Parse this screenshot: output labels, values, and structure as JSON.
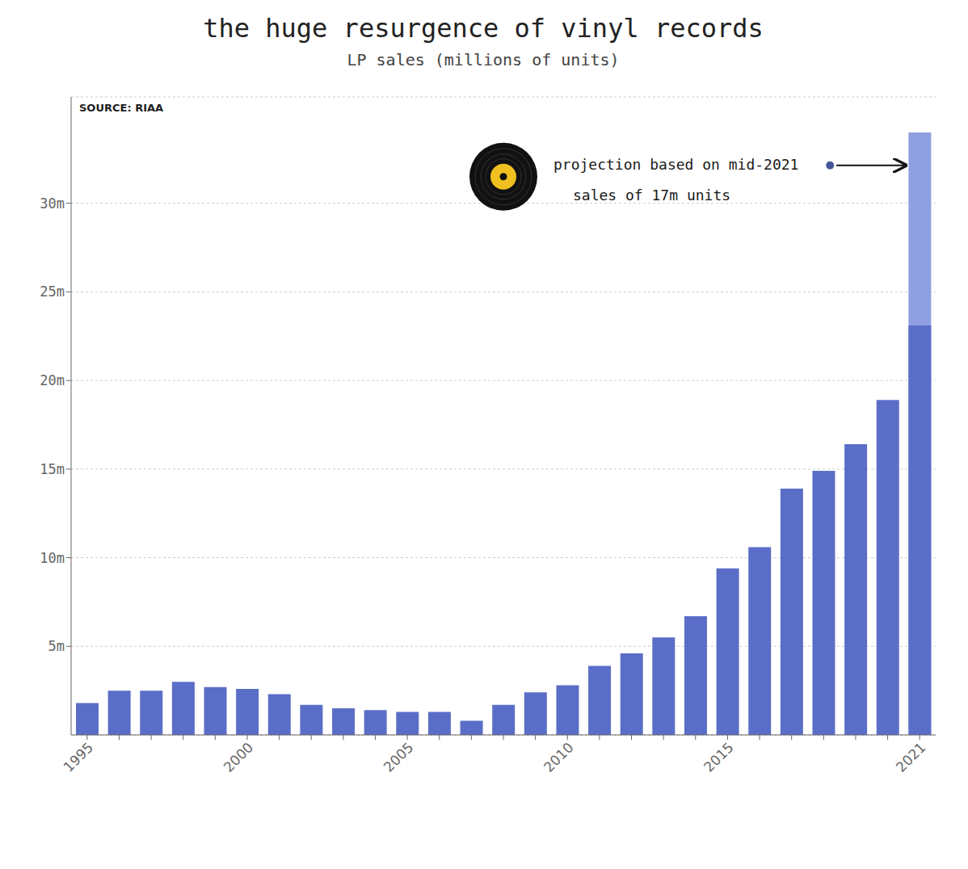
{
  "chart_data": {
    "type": "bar",
    "title": "the huge resurgence of vinyl records",
    "subtitle": "LP sales (millions of units)",
    "source": "SOURCE: RIAA",
    "annotations": [
      "projection based on mid-2021",
      "sales of 17m units"
    ],
    "categories": [
      "1995",
      null,
      null,
      null,
      null,
      "2000",
      null,
      null,
      null,
      null,
      "2005",
      null,
      null,
      null,
      null,
      "2010",
      null,
      null,
      null,
      null,
      "2015",
      null,
      null,
      null,
      null,
      null,
      "2021"
    ],
    "series": [
      {
        "color": "#8fa0e0",
        "values": [
          null,
          null,
          null,
          null,
          null,
          null,
          null,
          null,
          null,
          null,
          null,
          null,
          null,
          null,
          null,
          null,
          null,
          null,
          null,
          null,
          null,
          null,
          null,
          null,
          null,
          null,
          34.0
        ]
      },
      {
        "color": "#5b6ec7",
        "values": [
          1.8,
          2.5,
          2.5,
          3.0,
          2.7,
          2.6,
          2.3,
          1.7,
          1.5,
          1.4,
          1.3,
          1.3,
          0.8,
          1.7,
          2.4,
          2.8,
          3.9,
          4.6,
          5.5,
          6.7,
          9.4,
          10.6,
          13.9,
          14.9,
          16.4,
          18.9,
          23.1
        ]
      }
    ],
    "ylim": [
      0,
      36
    ],
    "yticks": [
      {
        "value": 5,
        "label": "5m"
      },
      {
        "value": 10,
        "label": "10m"
      },
      {
        "value": 15,
        "label": "15m"
      },
      {
        "value": 20,
        "label": "20m"
      },
      {
        "value": 25,
        "label": "25m"
      },
      {
        "value": 30,
        "label": "30m"
      }
    ],
    "grid": true
  }
}
